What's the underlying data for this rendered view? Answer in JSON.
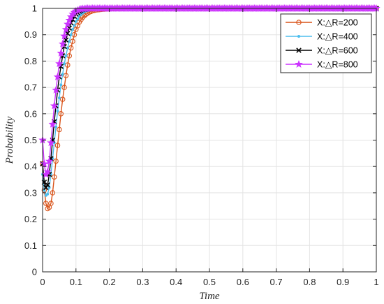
{
  "chart_data": {
    "type": "line",
    "xlabel": "Time",
    "ylabel": "Probability",
    "xlim": [
      0,
      1
    ],
    "ylim": [
      0,
      1
    ],
    "xticks": [
      0,
      0.1,
      0.2,
      0.3,
      0.4,
      0.5,
      0.6,
      0.7,
      0.8,
      0.9,
      1
    ],
    "xtick_labels": [
      "0",
      "0.1",
      "0.2",
      "0.3",
      "0.4",
      "0.5",
      "0.6",
      "0.7",
      "0.8",
      "0.9",
      "1"
    ],
    "yticks": [
      0,
      0.1,
      0.2,
      0.3,
      0.4,
      0.5,
      0.6,
      0.7,
      0.8,
      0.9,
      1
    ],
    "ytick_labels": [
      "0",
      "0.1",
      "0.2",
      "0.3",
      "0.4",
      "0.5",
      "0.6",
      "0.7",
      "0.8",
      "0.9",
      "1"
    ],
    "grid": true,
    "legend_position": "top-right",
    "series": [
      {
        "name": "X:△R=200",
        "color": "#d95319",
        "marker": "circle",
        "x": [
          0,
          0.005,
          0.01,
          0.015,
          0.02,
          0.025,
          0.03,
          0.035,
          0.04,
          0.045,
          0.05,
          0.055,
          0.06,
          0.065,
          0.07,
          0.075,
          0.08,
          0.085,
          0.09,
          0.095,
          0.1,
          0.11,
          0.12,
          0.13,
          0.14,
          0.15,
          0.16,
          0.18,
          0.2,
          0.25,
          0.3,
          1
        ],
        "y": [
          0.41,
          0.31,
          0.26,
          0.24,
          0.245,
          0.26,
          0.3,
          0.36,
          0.42,
          0.48,
          0.54,
          0.6,
          0.655,
          0.7,
          0.745,
          0.785,
          0.82,
          0.85,
          0.875,
          0.9,
          0.92,
          0.948,
          0.966,
          0.978,
          0.986,
          0.991,
          0.994,
          0.997,
          0.999,
          1,
          1,
          1
        ]
      },
      {
        "name": "X:△R=400",
        "color": "#4dbeee",
        "marker": "point",
        "x": [
          0,
          0.005,
          0.01,
          0.015,
          0.02,
          0.025,
          0.03,
          0.035,
          0.04,
          0.045,
          0.05,
          0.055,
          0.06,
          0.065,
          0.07,
          0.075,
          0.08,
          0.085,
          0.09,
          0.095,
          0.1,
          0.11,
          0.12,
          0.13,
          0.14,
          0.16,
          0.2,
          0.3,
          1
        ],
        "y": [
          0.37,
          0.31,
          0.29,
          0.295,
          0.32,
          0.37,
          0.43,
          0.49,
          0.55,
          0.61,
          0.66,
          0.71,
          0.75,
          0.79,
          0.82,
          0.85,
          0.875,
          0.9,
          0.92,
          0.935,
          0.95,
          0.97,
          0.982,
          0.99,
          0.994,
          0.998,
          1,
          1,
          1
        ]
      },
      {
        "name": "X:△R=600",
        "color": "#000000",
        "marker": "x",
        "x": [
          0,
          0.005,
          0.01,
          0.015,
          0.02,
          0.025,
          0.03,
          0.035,
          0.04,
          0.045,
          0.05,
          0.055,
          0.06,
          0.065,
          0.07,
          0.075,
          0.08,
          0.085,
          0.09,
          0.095,
          0.1,
          0.11,
          0.12,
          0.14,
          0.16,
          0.2,
          0.3,
          1
        ],
        "y": [
          0.41,
          0.34,
          0.32,
          0.33,
          0.37,
          0.43,
          0.5,
          0.57,
          0.63,
          0.69,
          0.74,
          0.78,
          0.82,
          0.855,
          0.88,
          0.905,
          0.925,
          0.945,
          0.958,
          0.97,
          0.978,
          0.989,
          0.995,
          0.999,
          1,
          1,
          1,
          1
        ]
      },
      {
        "name": "X:△R=800",
        "color": "#cc33ff",
        "marker": "star",
        "x": [
          0,
          0.005,
          0.01,
          0.015,
          0.02,
          0.025,
          0.03,
          0.035,
          0.04,
          0.045,
          0.05,
          0.055,
          0.06,
          0.065,
          0.07,
          0.075,
          0.08,
          0.085,
          0.09,
          0.095,
          0.1,
          0.11,
          0.12,
          0.14,
          0.16,
          0.2,
          0.3,
          1
        ],
        "y": [
          0.5,
          0.41,
          0.37,
          0.38,
          0.42,
          0.49,
          0.56,
          0.63,
          0.69,
          0.74,
          0.79,
          0.83,
          0.865,
          0.895,
          0.92,
          0.94,
          0.955,
          0.968,
          0.978,
          0.985,
          0.99,
          0.996,
          0.999,
          1,
          1,
          1,
          1,
          1
        ]
      }
    ]
  }
}
